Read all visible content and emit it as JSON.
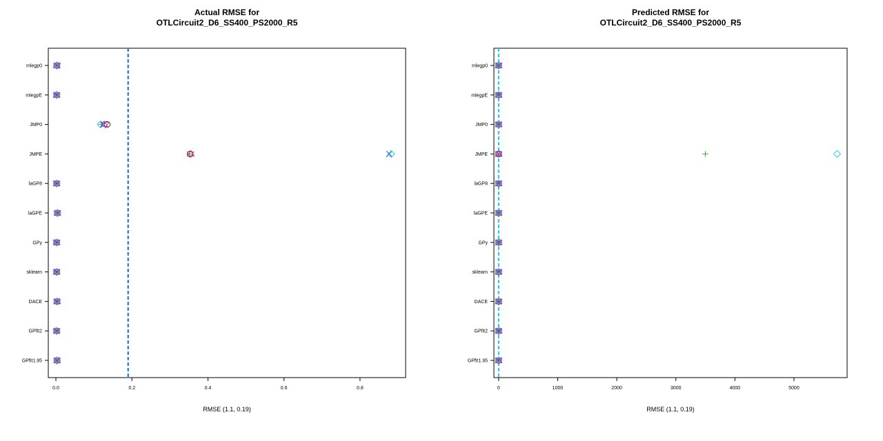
{
  "chart_data": [
    {
      "type": "scatter",
      "title": "Actual RMSE for\nOTLCircuit2_D6_SS400_PS2000_R5",
      "xlabel": "RMSE (1.1, 0.19)",
      "ylabel": "",
      "xlim": [
        -0.02,
        0.92
      ],
      "x_ticks": [
        "0.0",
        "0.2",
        "0.4",
        "0.6",
        "0.8"
      ],
      "x_tick_values": [
        0,
        0.2,
        0.4,
        0.6,
        0.8
      ],
      "categories": [
        "mlegp0",
        "mlegpE",
        "JMP0",
        "JMPE",
        "laGP8",
        "laGPE",
        "GPy",
        "sklearn",
        "DACE",
        "GPfit2",
        "GPfit1.95"
      ],
      "reference_line": {
        "x": 0.19,
        "color": "#1f77e0",
        "style": "dashed"
      },
      "series": [
        {
          "marker": "circle",
          "color": "#333333",
          "values": [
            0.003,
            0.002,
            0.135,
            0.353,
            0.002,
            0.004,
            0.002,
            0.002,
            0.003,
            0.002,
            0.003
          ]
        },
        {
          "marker": "triangle",
          "color": "#e0303a",
          "values": [
            0.002,
            0.002,
            0.127,
            0.355,
            0.002,
            0.004,
            0.002,
            0.002,
            0.003,
            0.002,
            0.003
          ]
        },
        {
          "marker": "plus",
          "color": "#30b030",
          "values": [
            0.002,
            0.002,
            0.12,
            0.352,
            0.002,
            0.004,
            0.002,
            0.002,
            0.003,
            0.002,
            0.003
          ]
        },
        {
          "marker": "x",
          "color": "#2040d0",
          "values": [
            0.003,
            0.002,
            0.124,
            0.877,
            0.002,
            0.004,
            0.002,
            0.002,
            0.003,
            0.002,
            0.003
          ]
        },
        {
          "marker": "diamond",
          "color": "#30c8e8",
          "values": [
            0.002,
            0.002,
            0.118,
            0.882,
            0.002,
            0.004,
            0.002,
            0.002,
            0.003,
            0.002,
            0.003
          ]
        },
        {
          "marker": "triangle-down",
          "color": "#c040c0",
          "values": [
            0.003,
            0.002,
            0.13,
            0.354,
            0.002,
            0.004,
            0.002,
            0.002,
            0.003,
            0.002,
            0.003
          ]
        }
      ]
    },
    {
      "type": "scatter",
      "title": "Predicted RMSE for\nOTLCircuit2_D6_SS400_PS2000_R5",
      "xlabel": "RMSE (1.1, 0.19)",
      "ylabel": "",
      "xlim": [
        -80,
        5900
      ],
      "x_ticks": [
        "0",
        "1000",
        "2000",
        "3000",
        "4000",
        "5000"
      ],
      "x_tick_values": [
        0,
        1000,
        2000,
        3000,
        4000,
        5000
      ],
      "categories": [
        "mlegp0",
        "mlegpE",
        "JMP0",
        "JMPE",
        "laGP8",
        "laGPE",
        "GPy",
        "sklearn",
        "DACE",
        "GPfit2",
        "GPfit1.95"
      ],
      "reference_line": {
        "x": 0.19,
        "color": "#30c8e8",
        "style": "dashed"
      },
      "series": [
        {
          "marker": "circle",
          "color": "#333333",
          "values": [
            0,
            0,
            0,
            0,
            0,
            0,
            0,
            0,
            0,
            0,
            0
          ]
        },
        {
          "marker": "triangle",
          "color": "#e0303a",
          "values": [
            0,
            0,
            0,
            0,
            0,
            0,
            0,
            0,
            0,
            0,
            0
          ]
        },
        {
          "marker": "plus",
          "color": "#30b030",
          "values": [
            0,
            0,
            0,
            3500,
            0,
            0,
            0,
            0,
            0,
            0,
            0
          ]
        },
        {
          "marker": "x",
          "color": "#2040d0",
          "values": [
            0,
            0,
            0,
            0,
            0,
            0,
            0,
            0,
            0,
            0,
            0
          ]
        },
        {
          "marker": "diamond",
          "color": "#30c8e8",
          "values": [
            0,
            0,
            0,
            5730,
            0,
            0,
            0,
            0,
            0,
            0,
            0
          ]
        },
        {
          "marker": "triangle-down",
          "color": "#c040c0",
          "values": [
            0,
            0,
            0,
            0,
            0,
            0,
            0,
            0,
            0,
            0,
            0
          ]
        }
      ]
    }
  ]
}
